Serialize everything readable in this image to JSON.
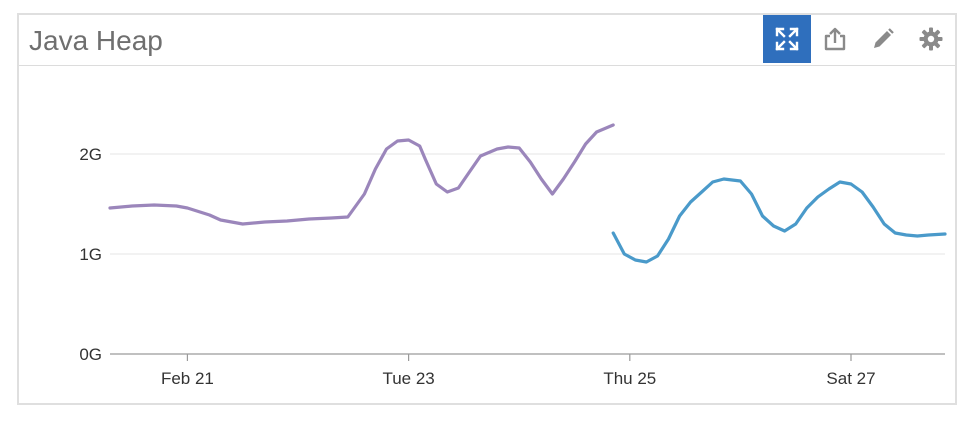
{
  "widget": {
    "title": "Java Heap",
    "toolbar": {
      "expand_icon": "expand-arrows-icon",
      "share_icon": "share-export-icon",
      "edit_icon": "pencil-icon",
      "settings_icon": "gear-icon",
      "active_color": "#2f6fbd",
      "icon_color": "#8a8a8a"
    }
  },
  "chart_data": {
    "type": "line",
    "title": "",
    "xlabel": "",
    "ylabel": "",
    "y_ticks": [
      "0G",
      "1G",
      "2G"
    ],
    "ylim": [
      0,
      2.5
    ],
    "x_range_days": [
      20.3,
      27.85
    ],
    "x_ticks": [
      {
        "label": "Feb 21",
        "day": 21
      },
      {
        "label": "Tue 23",
        "day": 23
      },
      {
        "label": "Thu 25",
        "day": 25
      },
      {
        "label": "Sat 27",
        "day": 27
      }
    ],
    "grid": true,
    "legend": "none",
    "series": [
      {
        "color": "#9b86bb",
        "points": [
          [
            20.3,
            1.46
          ],
          [
            20.5,
            1.48
          ],
          [
            20.7,
            1.49
          ],
          [
            20.9,
            1.48
          ],
          [
            21.0,
            1.46
          ],
          [
            21.2,
            1.39
          ],
          [
            21.3,
            1.34
          ],
          [
            21.5,
            1.3
          ],
          [
            21.7,
            1.32
          ],
          [
            21.9,
            1.33
          ],
          [
            22.1,
            1.35
          ],
          [
            22.3,
            1.36
          ],
          [
            22.45,
            1.37
          ],
          [
            22.6,
            1.6
          ],
          [
            22.7,
            1.85
          ],
          [
            22.8,
            2.05
          ],
          [
            22.9,
            2.13
          ],
          [
            23.0,
            2.14
          ],
          [
            23.1,
            2.08
          ],
          [
            23.15,
            1.95
          ],
          [
            23.25,
            1.7
          ],
          [
            23.35,
            1.62
          ],
          [
            23.45,
            1.66
          ],
          [
            23.55,
            1.82
          ],
          [
            23.65,
            1.98
          ],
          [
            23.8,
            2.05
          ],
          [
            23.9,
            2.07
          ],
          [
            24.0,
            2.06
          ],
          [
            24.1,
            1.92
          ],
          [
            24.2,
            1.75
          ],
          [
            24.3,
            1.6
          ],
          [
            24.4,
            1.75
          ],
          [
            24.5,
            1.92
          ],
          [
            24.6,
            2.1
          ],
          [
            24.7,
            2.22
          ],
          [
            24.85,
            2.29
          ]
        ]
      },
      {
        "color": "#4a9aca",
        "points": [
          [
            24.85,
            1.21
          ],
          [
            24.95,
            1.0
          ],
          [
            25.05,
            0.94
          ],
          [
            25.15,
            0.92
          ],
          [
            25.25,
            0.98
          ],
          [
            25.35,
            1.15
          ],
          [
            25.45,
            1.38
          ],
          [
            25.55,
            1.52
          ],
          [
            25.65,
            1.62
          ],
          [
            25.75,
            1.72
          ],
          [
            25.85,
            1.75
          ],
          [
            26.0,
            1.73
          ],
          [
            26.1,
            1.6
          ],
          [
            26.2,
            1.38
          ],
          [
            26.3,
            1.28
          ],
          [
            26.4,
            1.23
          ],
          [
            26.5,
            1.3
          ],
          [
            26.6,
            1.46
          ],
          [
            26.7,
            1.57
          ],
          [
            26.8,
            1.65
          ],
          [
            26.9,
            1.72
          ],
          [
            27.0,
            1.7
          ],
          [
            27.1,
            1.62
          ],
          [
            27.2,
            1.47
          ],
          [
            27.3,
            1.3
          ],
          [
            27.4,
            1.21
          ],
          [
            27.5,
            1.19
          ],
          [
            27.6,
            1.18
          ],
          [
            27.7,
            1.19
          ],
          [
            27.85,
            1.2
          ]
        ]
      }
    ]
  }
}
